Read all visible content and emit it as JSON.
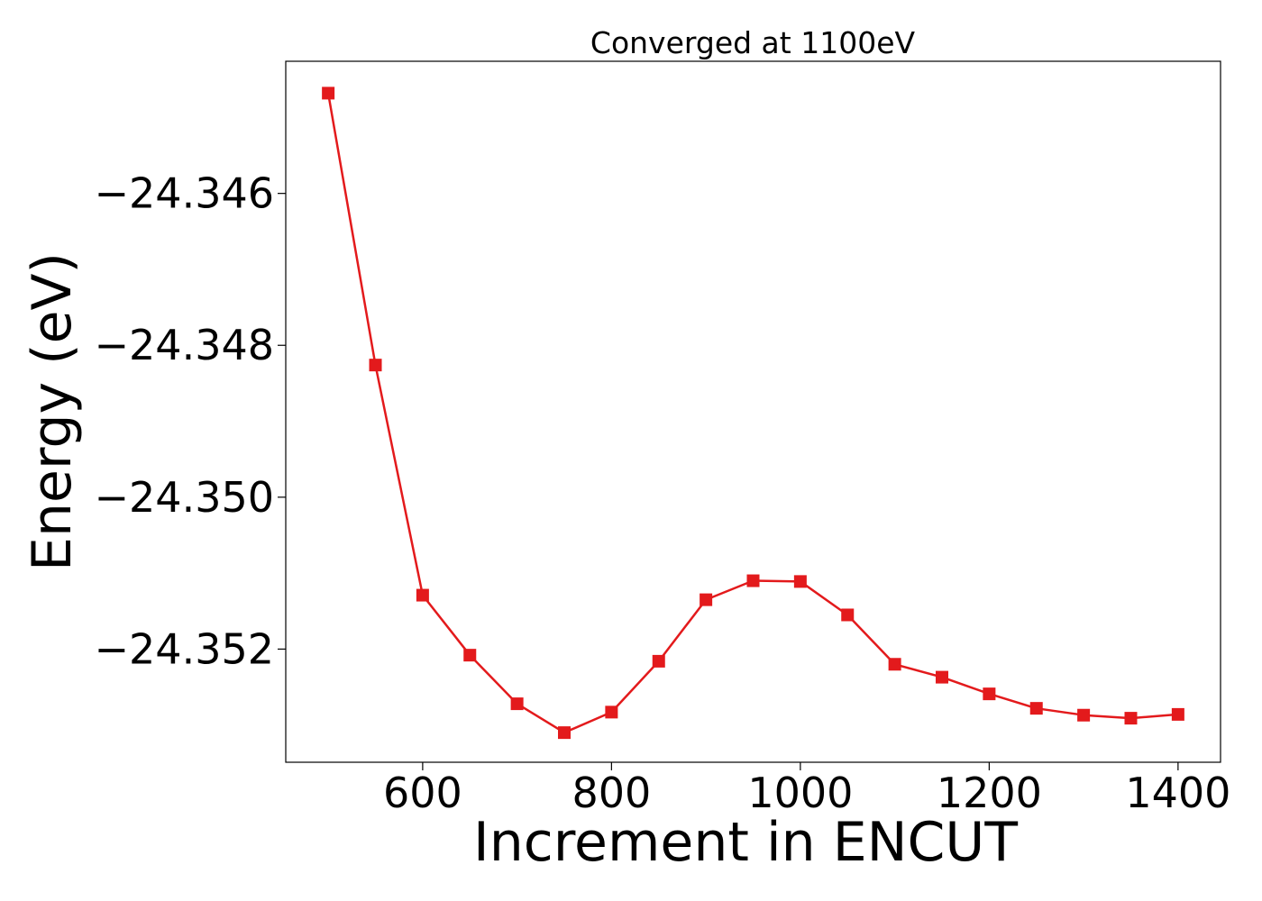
{
  "chart_data": {
    "type": "line",
    "title": "Converged at 1100eV",
    "xlabel": "Increment in ENCUT",
    "ylabel": "Energy (eV)",
    "x": [
      500,
      550,
      600,
      650,
      700,
      750,
      800,
      850,
      900,
      950,
      1000,
      1050,
      1100,
      1150,
      1200,
      1250,
      1300,
      1350,
      1400
    ],
    "series": [
      {
        "values": [
          -24.34468,
          -24.34826,
          -24.35129,
          -24.35208,
          -24.35272,
          -24.3531,
          -24.35283,
          -24.35216,
          -24.35135,
          -24.3511,
          -24.35111,
          -24.35155,
          -24.3522,
          -24.35237,
          -24.35259,
          -24.35278,
          -24.35287,
          -24.35291,
          -24.35286
        ],
        "color": "#e31a1c",
        "marker": "square"
      }
    ],
    "xticks": [
      600,
      800,
      1000,
      1200,
      1400
    ],
    "xtick_labels": [
      "600",
      "800",
      "1000",
      "1200",
      "1400"
    ],
    "yticks": [
      -24.346,
      -24.348,
      -24.35,
      -24.352
    ],
    "ytick_labels": [
      "−24.346",
      "−24.348",
      "−24.350",
      "−24.352"
    ],
    "xlim": [
      455,
      1445
    ],
    "ylim": [
      -24.35349,
      -24.34426
    ],
    "grid": false,
    "legend": "none"
  }
}
